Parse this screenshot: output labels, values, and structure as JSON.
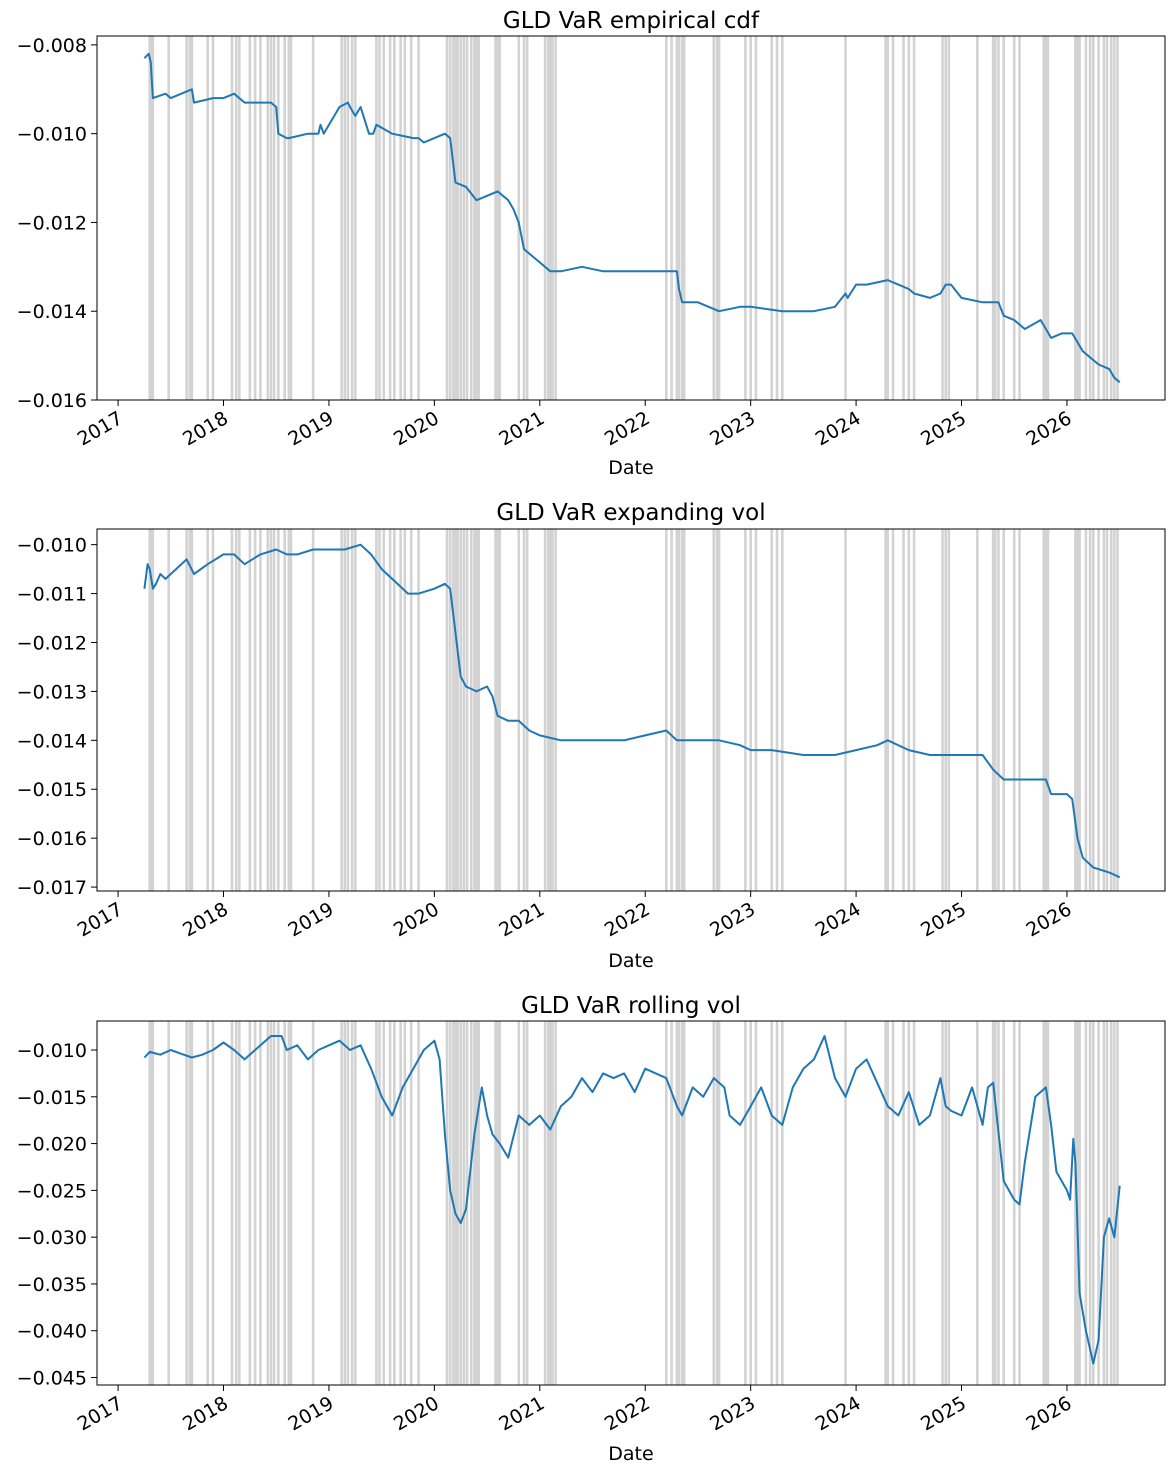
{
  "chart_data": [
    {
      "type": "line",
      "title": "GLD VaR empirical cdf",
      "xlabel": "Date",
      "ylabel": "",
      "x_ticks": [
        "2017",
        "2018",
        "2019",
        "2020",
        "2021",
        "2022",
        "2023",
        "2024",
        "2025",
        "2026"
      ],
      "y_ticks": [
        "−0.008",
        "−0.010",
        "−0.012",
        "−0.014",
        "−0.016"
      ],
      "ylim": [
        -0.016,
        -0.0078
      ],
      "xlim": [
        2016.8,
        2026.93
      ],
      "grid": false,
      "series_color": "#1f77b4",
      "band_color": "#d3d3d3",
      "series": [
        {
          "x": [
            2017.25,
            2017.29,
            2017.31,
            2017.32,
            2017.33,
            2017.45,
            2017.5,
            2017.6,
            2017.7,
            2017.72,
            2017.9,
            2018.0,
            2018.1,
            2018.2,
            2018.3,
            2018.45,
            2018.5,
            2018.52,
            2018.6,
            2018.62,
            2018.8,
            2018.9,
            2018.92,
            2018.95,
            2019.1,
            2019.18,
            2019.2,
            2019.25,
            2019.3,
            2019.38,
            2019.42,
            2019.45,
            2019.6,
            2019.8,
            2019.85,
            2019.9,
            2020.0,
            2020.1,
            2020.15,
            2020.17,
            2020.2,
            2020.3,
            2020.4,
            2020.6,
            2020.7,
            2020.75,
            2020.8,
            2020.85,
            2020.95,
            2021.0,
            2021.1,
            2021.2,
            2021.4,
            2021.6,
            2022.0,
            2022.2,
            2022.3,
            2022.32,
            2022.35,
            2022.5,
            2022.7,
            2022.9,
            2023.0,
            2023.3,
            2023.6,
            2023.8,
            2023.9,
            2023.92,
            2024.0,
            2024.1,
            2024.3,
            2024.4,
            2024.5,
            2024.55,
            2024.7,
            2024.8,
            2024.85,
            2024.9,
            2025.0,
            2025.2,
            2025.3,
            2025.35,
            2025.4,
            2025.5,
            2025.6,
            2025.75,
            2025.8,
            2025.85,
            2025.95,
            2026.05,
            2026.1,
            2026.15,
            2026.2,
            2026.3,
            2026.4,
            2026.45,
            2026.5
          ],
          "y": [
            -0.0083,
            -0.0082,
            -0.0084,
            -0.0088,
            -0.0092,
            -0.0091,
            -0.0092,
            -0.0091,
            -0.009,
            -0.0093,
            -0.0092,
            -0.0092,
            -0.0091,
            -0.0093,
            -0.0093,
            -0.0093,
            -0.0094,
            -0.01,
            -0.0101,
            -0.0101,
            -0.01,
            -0.01,
            -0.0098,
            -0.01,
            -0.0094,
            -0.0093,
            -0.0094,
            -0.0096,
            -0.0094,
            -0.01,
            -0.01,
            -0.0098,
            -0.01,
            -0.0101,
            -0.0101,
            -0.0102,
            -0.0101,
            -0.01,
            -0.0101,
            -0.0105,
            -0.0111,
            -0.0112,
            -0.0115,
            -0.0113,
            -0.0115,
            -0.0117,
            -0.012,
            -0.0126,
            -0.0128,
            -0.0129,
            -0.0131,
            -0.0131,
            -0.013,
            -0.0131,
            -0.0131,
            -0.0131,
            -0.0131,
            -0.0135,
            -0.0138,
            -0.0138,
            -0.014,
            -0.0139,
            -0.0139,
            -0.014,
            -0.014,
            -0.0139,
            -0.0136,
            -0.0137,
            -0.0134,
            -0.0134,
            -0.0133,
            -0.0134,
            -0.0135,
            -0.0136,
            -0.0137,
            -0.0136,
            -0.0134,
            -0.0134,
            -0.0137,
            -0.0138,
            -0.0138,
            -0.0138,
            -0.0141,
            -0.0142,
            -0.0144,
            -0.0142,
            -0.0144,
            -0.0146,
            -0.0145,
            -0.0145,
            -0.0147,
            -0.0149,
            -0.015,
            -0.0152,
            -0.0153,
            -0.0155,
            -0.0156
          ]
        }
      ]
    },
    {
      "type": "line",
      "title": "GLD VaR expanding vol",
      "xlabel": "Date",
      "ylabel": "",
      "x_ticks": [
        "2017",
        "2018",
        "2019",
        "2020",
        "2021",
        "2022",
        "2023",
        "2024",
        "2025",
        "2026"
      ],
      "y_ticks": [
        "−0.010",
        "−0.011",
        "−0.012",
        "−0.013",
        "−0.014",
        "−0.015",
        "−0.016",
        "−0.017"
      ],
      "ylim": [
        -0.01708,
        -0.00968
      ],
      "xlim": [
        2016.8,
        2026.93
      ],
      "grid": false,
      "series_color": "#1f77b4",
      "band_color": "#d3d3d3",
      "series": [
        {
          "x": [
            2017.25,
            2017.28,
            2017.3,
            2017.33,
            2017.36,
            2017.4,
            2017.45,
            2017.55,
            2017.65,
            2017.72,
            2017.85,
            2018.0,
            2018.1,
            2018.2,
            2018.35,
            2018.5,
            2018.6,
            2018.7,
            2018.85,
            2019.0,
            2019.15,
            2019.3,
            2019.4,
            2019.5,
            2019.6,
            2019.75,
            2019.85,
            2020.0,
            2020.1,
            2020.15,
            2020.2,
            2020.25,
            2020.3,
            2020.4,
            2020.5,
            2020.55,
            2020.6,
            2020.7,
            2020.8,
            2020.9,
            2021.0,
            2021.2,
            2021.5,
            2021.8,
            2022.0,
            2022.2,
            2022.3,
            2022.5,
            2022.7,
            2022.9,
            2023.0,
            2023.2,
            2023.5,
            2023.8,
            2024.0,
            2024.2,
            2024.3,
            2024.5,
            2024.7,
            2024.9,
            2025.0,
            2025.2,
            2025.3,
            2025.4,
            2025.6,
            2025.8,
            2025.85,
            2026.0,
            2026.05,
            2026.1,
            2026.15,
            2026.25,
            2026.4,
            2026.5
          ],
          "y": [
            -0.0109,
            -0.0104,
            -0.0105,
            -0.0109,
            -0.0108,
            -0.0106,
            -0.0107,
            -0.0105,
            -0.0103,
            -0.0106,
            -0.0104,
            -0.0102,
            -0.0102,
            -0.0104,
            -0.0102,
            -0.0101,
            -0.0102,
            -0.0102,
            -0.0101,
            -0.0101,
            -0.0101,
            -0.01,
            -0.0102,
            -0.0105,
            -0.0107,
            -0.011,
            -0.011,
            -0.0109,
            -0.0108,
            -0.0109,
            -0.0118,
            -0.0127,
            -0.0129,
            -0.013,
            -0.0129,
            -0.0131,
            -0.0135,
            -0.0136,
            -0.0136,
            -0.0138,
            -0.0139,
            -0.014,
            -0.014,
            -0.014,
            -0.0139,
            -0.0138,
            -0.014,
            -0.014,
            -0.014,
            -0.0141,
            -0.0142,
            -0.0142,
            -0.0143,
            -0.0143,
            -0.0142,
            -0.0141,
            -0.014,
            -0.0142,
            -0.0143,
            -0.0143,
            -0.0143,
            -0.0143,
            -0.0146,
            -0.0148,
            -0.0148,
            -0.0148,
            -0.0151,
            -0.0151,
            -0.0152,
            -0.016,
            -0.0164,
            -0.0166,
            -0.0167,
            -0.0168
          ]
        }
      ]
    },
    {
      "type": "line",
      "title": "GLD VaR rolling vol",
      "xlabel": "Date",
      "ylabel": "",
      "x_ticks": [
        "2017",
        "2018",
        "2019",
        "2020",
        "2021",
        "2022",
        "2023",
        "2024",
        "2025",
        "2026"
      ],
      "y_ticks": [
        "−0.010",
        "−0.015",
        "−0.020",
        "−0.025",
        "−0.030",
        "−0.035",
        "−0.040",
        "−0.045"
      ],
      "ylim": [
        -0.0458,
        -0.0069
      ],
      "xlim": [
        2016.8,
        2026.93
      ],
      "grid": false,
      "series_color": "#1f77b4",
      "band_color": "#d3d3d3",
      "series": [
        {
          "x": [
            2017.25,
            2017.3,
            2017.4,
            2017.5,
            2017.6,
            2017.7,
            2017.8,
            2017.9,
            2018.0,
            2018.1,
            2018.2,
            2018.3,
            2018.45,
            2018.55,
            2018.6,
            2018.7,
            2018.8,
            2018.9,
            2019.0,
            2019.1,
            2019.2,
            2019.3,
            2019.4,
            2019.5,
            2019.6,
            2019.7,
            2019.8,
            2019.9,
            2020.0,
            2020.05,
            2020.1,
            2020.15,
            2020.2,
            2020.25,
            2020.3,
            2020.38,
            2020.45,
            2020.5,
            2020.55,
            2020.62,
            2020.7,
            2020.8,
            2020.9,
            2021.0,
            2021.1,
            2021.2,
            2021.3,
            2021.4,
            2021.5,
            2021.6,
            2021.7,
            2021.8,
            2021.9,
            2022.0,
            2022.1,
            2022.2,
            2022.3,
            2022.35,
            2022.45,
            2022.55,
            2022.65,
            2022.75,
            2022.8,
            2022.9,
            2023.0,
            2023.1,
            2023.2,
            2023.3,
            2023.4,
            2023.5,
            2023.6,
            2023.7,
            2023.8,
            2023.9,
            2024.0,
            2024.1,
            2024.2,
            2024.3,
            2024.4,
            2024.5,
            2024.6,
            2024.7,
            2024.8,
            2024.85,
            2024.9,
            2025.0,
            2025.1,
            2025.2,
            2025.25,
            2025.3,
            2025.4,
            2025.5,
            2025.55,
            2025.6,
            2025.7,
            2025.8,
            2025.85,
            2025.9,
            2026.0,
            2026.03,
            2026.06,
            2026.08,
            2026.12,
            2026.18,
            2026.25,
            2026.3,
            2026.35,
            2026.4,
            2026.45,
            2026.5
          ],
          "y": [
            -0.0108,
            -0.0102,
            -0.0105,
            -0.01,
            -0.0104,
            -0.0108,
            -0.0105,
            -0.01,
            -0.0092,
            -0.01,
            -0.011,
            -0.01,
            -0.0085,
            -0.0085,
            -0.01,
            -0.0095,
            -0.011,
            -0.01,
            -0.0095,
            -0.009,
            -0.01,
            -0.0095,
            -0.012,
            -0.015,
            -0.017,
            -0.014,
            -0.012,
            -0.01,
            -0.009,
            -0.011,
            -0.019,
            -0.025,
            -0.0275,
            -0.0285,
            -0.027,
            -0.019,
            -0.014,
            -0.017,
            -0.019,
            -0.02,
            -0.0215,
            -0.017,
            -0.018,
            -0.017,
            -0.0185,
            -0.016,
            -0.015,
            -0.013,
            -0.0145,
            -0.0125,
            -0.013,
            -0.0125,
            -0.0145,
            -0.012,
            -0.0125,
            -0.013,
            -0.016,
            -0.017,
            -0.014,
            -0.015,
            -0.013,
            -0.014,
            -0.017,
            -0.018,
            -0.016,
            -0.014,
            -0.017,
            -0.018,
            -0.014,
            -0.012,
            -0.011,
            -0.0085,
            -0.013,
            -0.015,
            -0.012,
            -0.011,
            -0.0135,
            -0.016,
            -0.017,
            -0.0145,
            -0.018,
            -0.017,
            -0.013,
            -0.016,
            -0.0165,
            -0.017,
            -0.014,
            -0.018,
            -0.014,
            -0.0135,
            -0.024,
            -0.026,
            -0.0265,
            -0.022,
            -0.015,
            -0.014,
            -0.018,
            -0.023,
            -0.025,
            -0.026,
            -0.0195,
            -0.022,
            -0.036,
            -0.04,
            -0.0435,
            -0.041,
            -0.03,
            -0.028,
            -0.03,
            -0.0245
          ]
        }
      ]
    }
  ],
  "bands": [
    2017.3,
    2017.32,
    2017.33,
    2017.48,
    2017.65,
    2017.68,
    2017.7,
    2017.85,
    2017.9,
    2018.08,
    2018.12,
    2018.15,
    2018.25,
    2018.3,
    2018.35,
    2018.42,
    2018.45,
    2018.48,
    2018.52,
    2018.58,
    2018.62,
    2018.64,
    2018.85,
    2019.12,
    2019.15,
    2019.18,
    2019.22,
    2019.25,
    2019.45,
    2019.48,
    2019.52,
    2019.58,
    2019.62,
    2019.68,
    2019.72,
    2019.78,
    2019.85,
    2020.12,
    2020.15,
    2020.18,
    2020.2,
    2020.22,
    2020.25,
    2020.28,
    2020.31,
    2020.35,
    2020.38,
    2020.4,
    2020.42,
    2020.58,
    2020.6,
    2020.62,
    2020.8,
    2020.85,
    2020.88,
    2021.05,
    2021.08,
    2021.1,
    2021.12,
    2021.15,
    2022.2,
    2022.25,
    2022.3,
    2022.32,
    2022.35,
    2022.37,
    2022.65,
    2022.68,
    2022.7,
    2022.95,
    2023.0,
    2023.05,
    2023.2,
    2023.25,
    2023.3,
    2023.9,
    2024.28,
    2024.3,
    2024.35,
    2024.45,
    2024.5,
    2024.55,
    2024.82,
    2024.85,
    2024.88,
    2025.15,
    2025.3,
    2025.32,
    2025.35,
    2025.4,
    2025.5,
    2025.55,
    2025.78,
    2025.8,
    2025.82,
    2026.08,
    2026.1,
    2026.12,
    2026.18,
    2026.22,
    2026.25,
    2026.3,
    2026.35,
    2026.38,
    2026.42,
    2026.45,
    2026.48
  ]
}
